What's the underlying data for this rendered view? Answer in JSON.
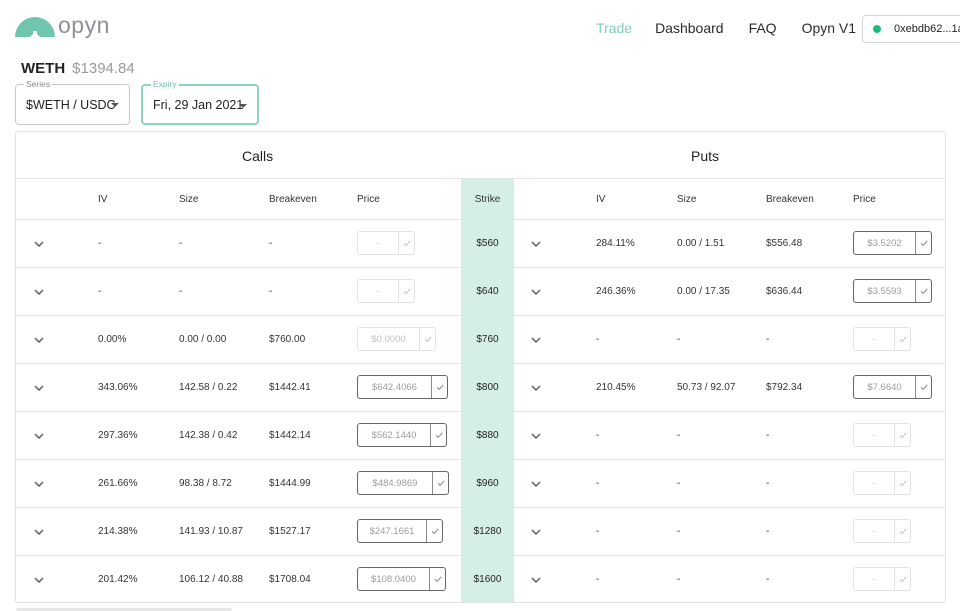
{
  "header": {
    "logo_text": "opyn",
    "nav": [
      "Trade",
      "Dashboard",
      "FAQ",
      "Opyn V1"
    ],
    "wallet": "0xebdb62...1a"
  },
  "asset": {
    "name": "WETH",
    "price": "$1394.84"
  },
  "series_select": {
    "label": "Series",
    "value": "$WETH / USDC"
  },
  "expiry_select": {
    "label": "Expiry",
    "value": "Fri, 29 Jan 2021"
  },
  "table": {
    "calls_title": "Calls",
    "puts_title": "Puts",
    "headers": {
      "call_iv": "IV",
      "call_size": "Size",
      "call_breakeven": "Breakeven",
      "call_price": "Price",
      "strike": "Strike",
      "put_iv": "IV",
      "put_size": "Size",
      "put_breakeven": "Breakeven",
      "put_price": "Price"
    },
    "rows": [
      {
        "c_iv": "-",
        "c_size": "-",
        "c_be": "-",
        "c_price": "-",
        "c_active": false,
        "c_w": 58,
        "strike": "$560",
        "p_iv": "284.11%",
        "p_size": "0.00 / 1.51",
        "p_be": "$556.48",
        "p_price": "$3.5202",
        "p_active": true,
        "p_w": 79
      },
      {
        "c_iv": "-",
        "c_size": "-",
        "c_be": "-",
        "c_price": "-",
        "c_active": false,
        "c_w": 58,
        "strike": "$640",
        "p_iv": "246.36%",
        "p_size": "0.00 / 17.35",
        "p_be": "$636.44",
        "p_price": "$3.5593",
        "p_active": true,
        "p_w": 79
      },
      {
        "c_iv": "0.00%",
        "c_size": "0.00 / 0.00",
        "c_be": "$760.00",
        "c_price": "$0.0000",
        "c_active": false,
        "c_w": 79,
        "strike": "$760",
        "p_iv": "-",
        "p_size": "-",
        "p_be": "-",
        "p_price": "-",
        "p_active": false,
        "p_w": 58
      },
      {
        "c_iv": "343.06%",
        "c_size": "142.58 / 0.22",
        "c_be": "$1442.41",
        "c_price": "$642.4066",
        "c_active": true,
        "c_w": 91,
        "strike": "$800",
        "p_iv": "210.45%",
        "p_size": "50.73 / 92.07",
        "p_be": "$792.34",
        "p_price": "$7.6640",
        "p_active": true,
        "p_w": 79
      },
      {
        "c_iv": "297.36%",
        "c_size": "142.38 / 0.42",
        "c_be": "$1442.14",
        "c_price": "$562.1440",
        "c_active": true,
        "c_w": 90,
        "strike": "$880",
        "p_iv": "-",
        "p_size": "-",
        "p_be": "-",
        "p_price": "-",
        "p_active": false,
        "p_w": 58
      },
      {
        "c_iv": "261.66%",
        "c_size": "98.38 / 8.72",
        "c_be": "$1444.99",
        "c_price": "$484.9869",
        "c_active": true,
        "c_w": 92,
        "strike": "$960",
        "p_iv": "-",
        "p_size": "-",
        "p_be": "-",
        "p_price": "-",
        "p_active": false,
        "p_w": 58
      },
      {
        "c_iv": "214.38%",
        "c_size": "141.93 / 10.87",
        "c_be": "$1527.17",
        "c_price": "$247.1661",
        "c_active": true,
        "c_w": 86,
        "strike": "$1280",
        "p_iv": "-",
        "p_size": "-",
        "p_be": "-",
        "p_price": "-",
        "p_active": false,
        "p_w": 58
      },
      {
        "c_iv": "201.42%",
        "c_size": "106.12 / 40.88",
        "c_be": "$1708.04",
        "c_price": "$108.0400",
        "c_active": true,
        "c_w": 89,
        "strike": "$1600",
        "p_iv": "-",
        "p_size": "-",
        "p_be": "-",
        "p_price": "-",
        "p_active": false,
        "p_w": 58
      }
    ]
  },
  "colors": {
    "accent": "#7fd0b8",
    "strike_bg": "#d6efe6",
    "wallet_dot": "#1fb97a",
    "logo": "#6fc5ae"
  },
  "icons": {
    "expand": "chevron-down-icon",
    "confirm": "check-icon",
    "logo": "umbrella-logo-icon"
  }
}
